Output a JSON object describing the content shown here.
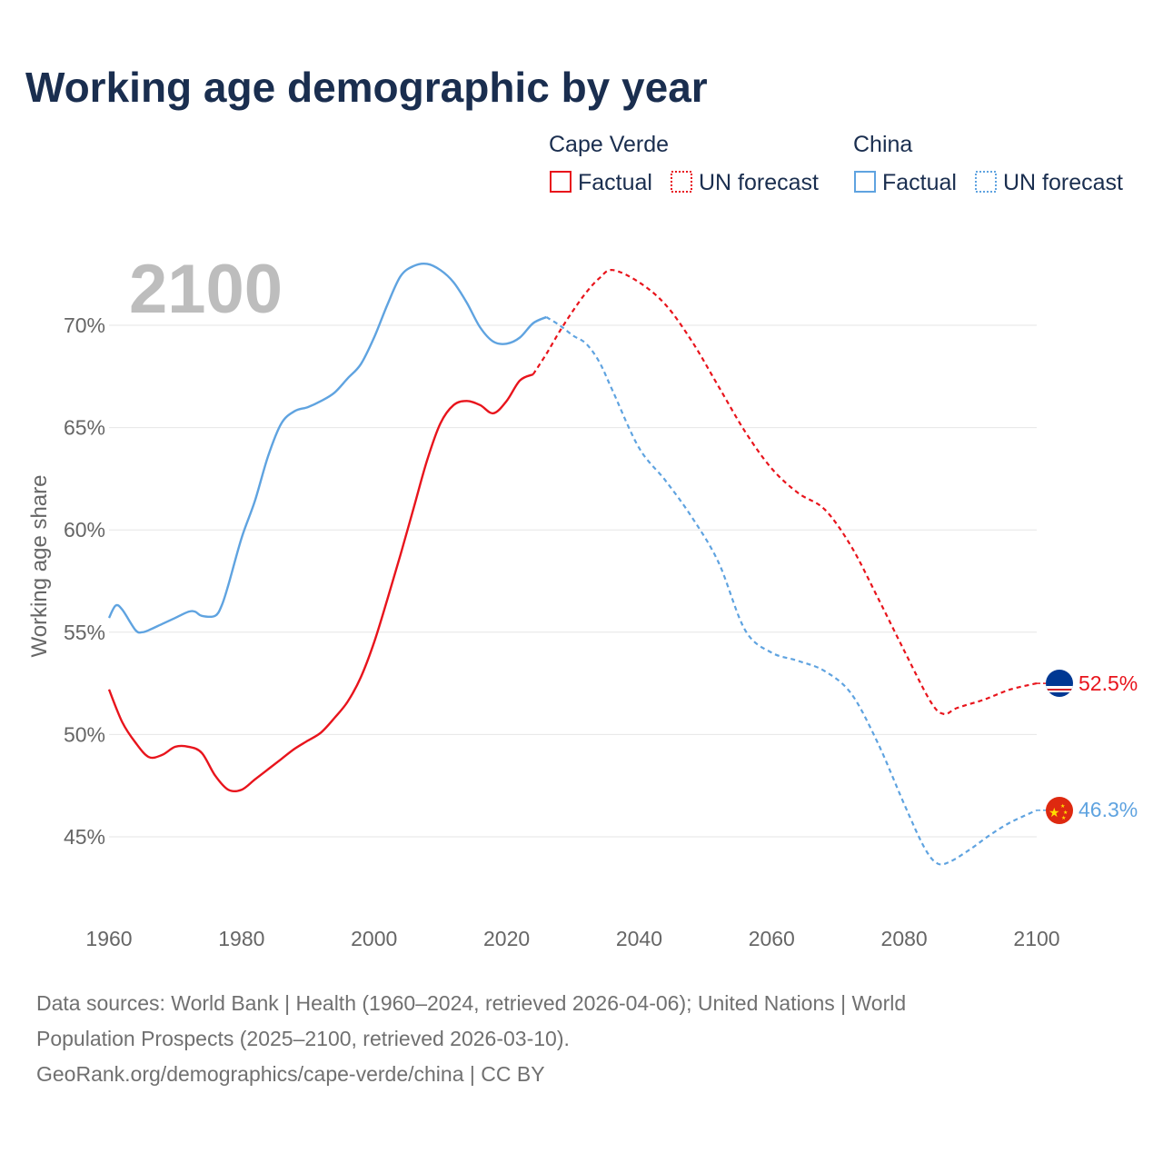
{
  "chart_data": {
    "type": "line",
    "title": "Working age demographic by year",
    "ylabel": "Working age share",
    "xlabel": "",
    "xlim": [
      1960,
      2100
    ],
    "ylim": [
      42,
      73.5
    ],
    "x_ticks": [
      1960,
      1980,
      2000,
      2020,
      2040,
      2060,
      2080,
      2100
    ],
    "x_tick_labels": [
      "1960",
      "1980",
      "2000",
      "2020",
      "2040",
      "2060",
      "2080",
      "2100"
    ],
    "y_ticks": [
      45,
      50,
      55,
      60,
      65,
      70
    ],
    "y_tick_labels": [
      "45%",
      "50%",
      "55%",
      "60%",
      "65%",
      "70%"
    ],
    "grid": true,
    "year_watermark": "2100",
    "legend": {
      "groups": [
        {
          "name": "Cape Verde",
          "factual_label": "Factual",
          "forecast_label": "UN forecast",
          "color": "#e8141c"
        },
        {
          "name": "China",
          "factual_label": "Factual",
          "forecast_label": "UN forecast",
          "color": "#5fa3e0"
        }
      ]
    },
    "series": [
      {
        "name": "Cape Verde",
        "color": "#e8141c",
        "end_label": "52.5%",
        "flag": "cape-verde-flag-icon",
        "factual": {
          "x": [
            1960,
            1962,
            1964,
            1966,
            1968,
            1970,
            1972,
            1974,
            1976,
            1978,
            1980,
            1982,
            1984,
            1986,
            1988,
            1990,
            1992,
            1994,
            1996,
            1998,
            2000,
            2002,
            2004,
            2006,
            2008,
            2010,
            2012,
            2014,
            2016,
            2018,
            2020,
            2022,
            2024
          ],
          "y": [
            52.2,
            50.6,
            49.6,
            48.9,
            49.0,
            49.4,
            49.4,
            49.1,
            48.0,
            47.3,
            47.3,
            47.8,
            48.3,
            48.8,
            49.3,
            49.7,
            50.1,
            50.8,
            51.6,
            52.8,
            54.5,
            56.6,
            58.8,
            61.1,
            63.4,
            65.2,
            66.1,
            66.3,
            66.1,
            65.7,
            66.3,
            67.3,
            67.6
          ]
        },
        "forecast": {
          "x": [
            2024,
            2026,
            2028,
            2030,
            2032,
            2034,
            2036,
            2040,
            2044,
            2048,
            2052,
            2056,
            2060,
            2064,
            2068,
            2072,
            2076,
            2080,
            2084,
            2086,
            2088,
            2092,
            2096,
            2100
          ],
          "y": [
            67.6,
            68.6,
            69.7,
            70.7,
            71.6,
            72.3,
            72.7,
            72.1,
            71.0,
            69.2,
            67.0,
            64.8,
            63.0,
            61.8,
            61.0,
            59.2,
            56.7,
            54.1,
            51.6,
            51.0,
            51.3,
            51.7,
            52.2,
            52.5
          ]
        }
      },
      {
        "name": "China",
        "color": "#5fa3e0",
        "end_label": "46.3%",
        "flag": "china-flag-icon",
        "factual": {
          "x": [
            1960,
            1961,
            1962,
            1964,
            1965,
            1966,
            1968,
            1970,
            1972,
            1973,
            1974,
            1976,
            1977,
            1978,
            1980,
            1982,
            1984,
            1986,
            1988,
            1990,
            1992,
            1994,
            1996,
            1998,
            2000,
            2002,
            2004,
            2006,
            2008,
            2010,
            2012,
            2014,
            2016,
            2018,
            2020,
            2022,
            2024,
            2026
          ],
          "y": [
            55.7,
            56.3,
            56.1,
            55.1,
            55.0,
            55.1,
            55.4,
            55.7,
            56.0,
            56.0,
            55.8,
            55.8,
            56.3,
            57.3,
            59.6,
            61.4,
            63.6,
            65.2,
            65.8,
            66.0,
            66.3,
            66.7,
            67.4,
            68.1,
            69.4,
            71.0,
            72.4,
            72.9,
            73.0,
            72.7,
            72.1,
            71.1,
            69.9,
            69.2,
            69.1,
            69.4,
            70.1,
            70.4
          ]
        },
        "forecast": {
          "x": [
            2026,
            2028,
            2030,
            2032,
            2034,
            2036,
            2040,
            2044,
            2048,
            2052,
            2056,
            2060,
            2064,
            2068,
            2072,
            2076,
            2080,
            2083,
            2085,
            2087,
            2090,
            2093,
            2096,
            2100
          ],
          "y": [
            70.4,
            70.0,
            69.5,
            69.1,
            68.2,
            66.8,
            64.0,
            62.4,
            60.6,
            58.4,
            55.1,
            54.0,
            53.6,
            53.1,
            52.0,
            49.6,
            46.6,
            44.5,
            43.7,
            43.8,
            44.4,
            45.1,
            45.7,
            46.3
          ]
        }
      }
    ]
  },
  "footer": {
    "sources_line1": "Data sources: World Bank | Health (1960–2024, retrieved 2026-04-06); United Nations | World",
    "sources_line2": "Population Prospects (2025–2100, retrieved 2026-03-10).",
    "attribution": "GeoRank.org/demographics/cape-verde/china | CC BY"
  }
}
